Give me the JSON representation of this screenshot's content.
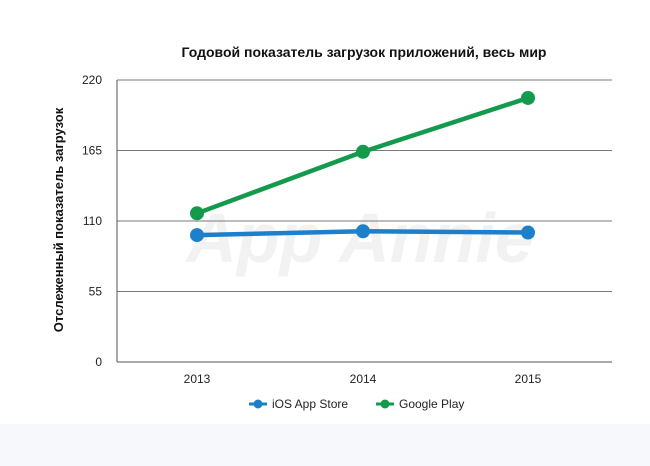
{
  "watermark": "App Annie",
  "chart_data": {
    "type": "line",
    "title": "Годовой показатель загрузок приложений, весь мир",
    "xlabel": "",
    "ylabel": "Отслеженный показатель загрузок",
    "categories": [
      "2013",
      "2014",
      "2015"
    ],
    "y_ticks": [
      "0",
      "55",
      "110",
      "165",
      "220"
    ],
    "ylim": [
      0,
      220
    ],
    "grid": true,
    "legend_position": "bottom",
    "series": [
      {
        "name": "iOS App Store",
        "color": "#1e7fcb",
        "values": [
          99,
          102,
          101
        ]
      },
      {
        "name": "Google Play",
        "color": "#139a4c",
        "values": [
          116,
          164,
          206
        ]
      }
    ]
  }
}
